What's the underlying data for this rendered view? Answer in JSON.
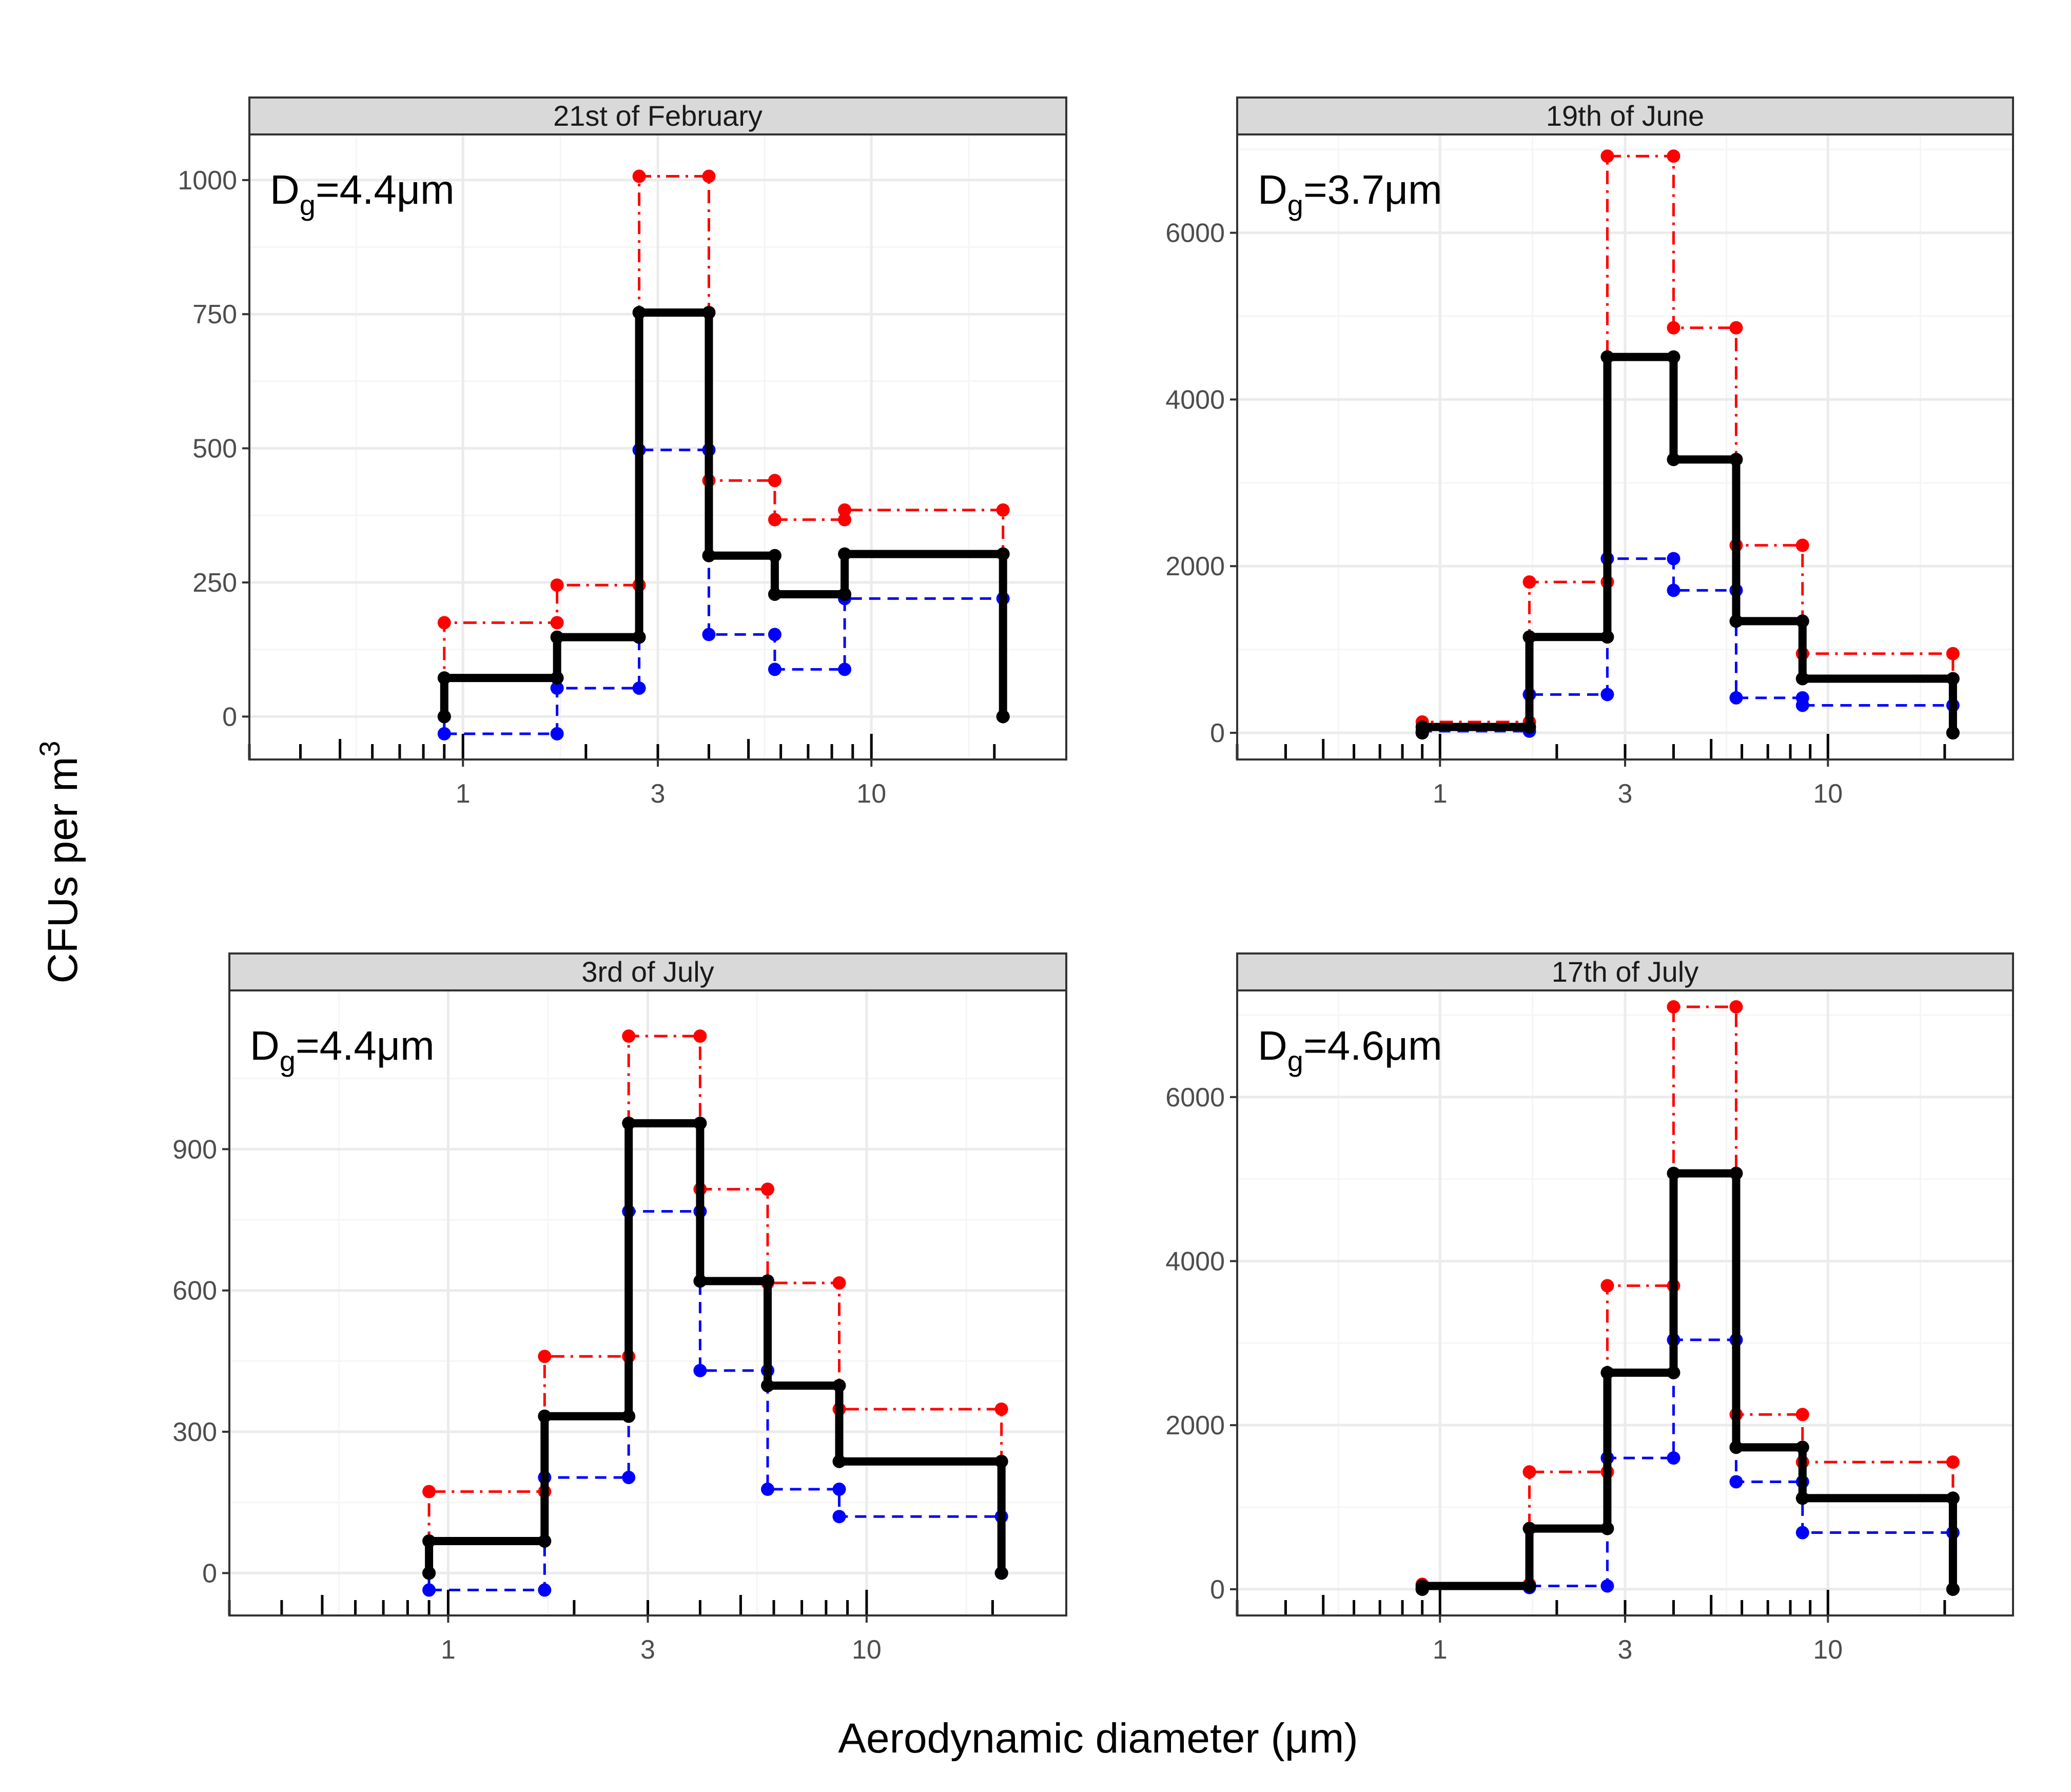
{
  "figure": {
    "x_axis_title": "Aerodynamic diameter (μm)",
    "y_axis_title_main": "CFUs per m",
    "y_axis_title_sup": "3"
  },
  "colors": {
    "mean": "#000000",
    "upper": "#ff0000",
    "lower": "#0000ff",
    "strip_bg": "#d9d9d9",
    "grid_major": "#ebebeb",
    "grid_minor": "#f5f5f5",
    "panel_border": "#333333"
  },
  "chart_data": [
    {
      "type": "line",
      "title": "21st of February",
      "annotation": {
        "main": "D",
        "sub": "g",
        "rest": "=4.4μm"
      },
      "xscale": "log10",
      "xlim": [
        0.3,
        30
      ],
      "ylim": [
        -80,
        1085
      ],
      "x_ticks": [
        1,
        3,
        10
      ],
      "x_tick_labels": [
        "1",
        "3",
        "10"
      ],
      "y_ticks": [
        0,
        250,
        500,
        750,
        1000
      ],
      "y_tick_labels": [
        "0",
        "250",
        "500",
        "750",
        "1000"
      ],
      "bin_edges": [
        0.9,
        1.7,
        2.7,
        4.0,
        5.8,
        8.6,
        21
      ],
      "series": [
        {
          "name": "mean",
          "style": "solid thick",
          "values": [
            72,
            148,
            753,
            300,
            228,
            303
          ]
        },
        {
          "name": "upper",
          "style": "dotdash",
          "values": [
            175,
            245,
            1007,
            440,
            367,
            385
          ]
        },
        {
          "name": "lower",
          "style": "dashed",
          "values": [
            -32,
            53,
            497,
            153,
            88,
            220
          ]
        }
      ]
    },
    {
      "type": "line",
      "title": "19th of June",
      "annotation": {
        "main": "D",
        "sub": "g",
        "rest": "=3.7μm"
      },
      "xscale": "log10",
      "xlim": [
        0.3,
        30
      ],
      "ylim": [
        -320,
        7180
      ],
      "x_ticks": [
        1,
        3,
        10
      ],
      "x_tick_labels": [
        "1",
        "3",
        "10"
      ],
      "y_ticks": [
        0,
        2000,
        4000,
        6000
      ],
      "y_tick_labels": [
        "0",
        "2000",
        "4000",
        "6000"
      ],
      "bin_edges": [
        0.9,
        1.7,
        2.7,
        4.0,
        5.8,
        8.6,
        21
      ],
      "series": [
        {
          "name": "mean",
          "style": "solid thick",
          "values": [
            70,
            1150,
            4510,
            3280,
            1340,
            650
          ]
        },
        {
          "name": "upper",
          "style": "dotdash",
          "values": [
            130,
            1810,
            6920,
            4860,
            2250,
            950
          ]
        },
        {
          "name": "lower",
          "style": "dashed",
          "values": [
            20,
            460,
            2090,
            1710,
            420,
            330
          ]
        }
      ]
    },
    {
      "type": "line",
      "title": "3rd of July",
      "annotation": {
        "main": "D",
        "sub": "g",
        "rest": "=4.4μm"
      },
      "xscale": "log10",
      "xlim": [
        0.3,
        30
      ],
      "ylim": [
        -90,
        1237
      ],
      "x_ticks": [
        1,
        3,
        10
      ],
      "x_tick_labels": [
        "1",
        "3",
        "10"
      ],
      "y_ticks": [
        0,
        300,
        600,
        900
      ],
      "y_tick_labels": [
        "0",
        "300",
        "600",
        "900"
      ],
      "bin_edges": [
        0.9,
        1.7,
        2.7,
        4.0,
        5.8,
        8.6,
        21
      ],
      "series": [
        {
          "name": "mean",
          "style": "solid thick",
          "values": [
            68,
            333,
            955,
            620,
            398,
            237
          ]
        },
        {
          "name": "upper",
          "style": "dotdash",
          "values": [
            173,
            460,
            1140,
            815,
            616,
            348
          ]
        },
        {
          "name": "lower",
          "style": "dashed",
          "values": [
            -36,
            203,
            768,
            430,
            178,
            120
          ]
        }
      ]
    },
    {
      "type": "line",
      "title": "17th of July",
      "annotation": {
        "main": "D",
        "sub": "g",
        "rest": "=4.6μm"
      },
      "xscale": "log10",
      "xlim": [
        0.3,
        30
      ],
      "ylim": [
        -320,
        7300
      ],
      "x_ticks": [
        1,
        3,
        10
      ],
      "x_tick_labels": [
        "1",
        "3",
        "10"
      ],
      "y_ticks": [
        0,
        2000,
        4000,
        6000
      ],
      "y_tick_labels": [
        "0",
        "2000",
        "4000",
        "6000"
      ],
      "bin_edges": [
        0.9,
        1.7,
        2.7,
        4.0,
        5.8,
        8.6,
        21
      ],
      "series": [
        {
          "name": "mean",
          "style": "solid thick",
          "values": [
            40,
            740,
            2640,
            5070,
            1730,
            1110
          ]
        },
        {
          "name": "upper",
          "style": "dotdash",
          "values": [
            60,
            1430,
            3700,
            7100,
            2130,
            1550
          ]
        },
        {
          "name": "lower",
          "style": "dashed",
          "values": [
            20,
            40,
            1600,
            3040,
            1310,
            690
          ]
        }
      ]
    }
  ]
}
